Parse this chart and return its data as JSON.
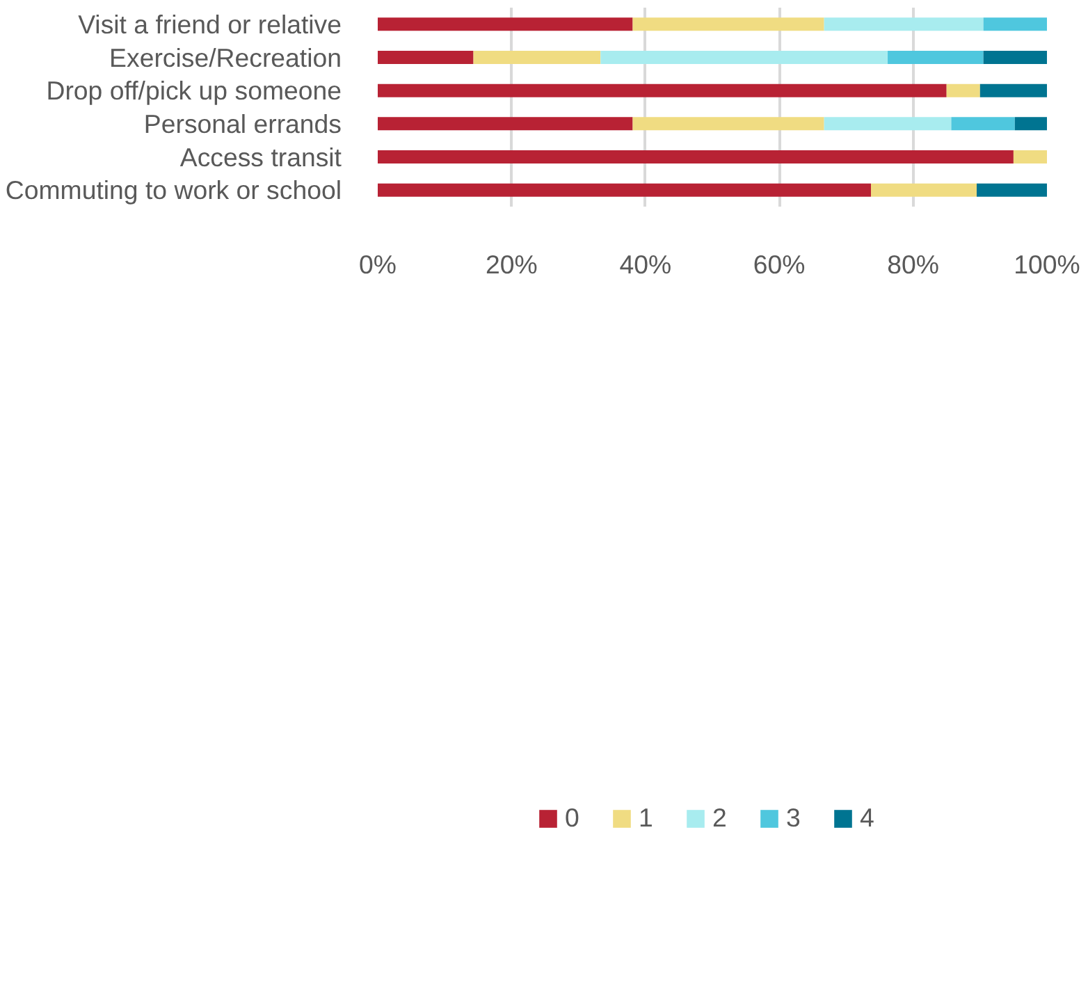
{
  "chart_data": {
    "type": "bar",
    "orientation": "horizontal",
    "stacked": true,
    "categories": [
      "Visit a friend or relative",
      "Exercise/Recreation",
      "Drop off/pick up someone",
      "Personal errands",
      "Access transit",
      "Commuting to work or school"
    ],
    "series": [
      {
        "name": "0",
        "color": "#b82234",
        "values": [
          38.1,
          14.3,
          85.0,
          38.1,
          95.0,
          73.7
        ]
      },
      {
        "name": "1",
        "color": "#f0dc82",
        "values": [
          28.6,
          19.0,
          5.0,
          28.6,
          5.0,
          15.8
        ]
      },
      {
        "name": "2",
        "color": "#a8ecef",
        "values": [
          23.8,
          42.9,
          0,
          19.0,
          0,
          0
        ]
      },
      {
        "name": "3",
        "color": "#4fc7de",
        "values": [
          9.5,
          14.3,
          0,
          9.5,
          0,
          0
        ]
      },
      {
        "name": "4",
        "color": "#007491",
        "values": [
          0,
          9.5,
          10.0,
          4.8,
          0,
          10.5
        ]
      }
    ],
    "xlim": [
      0,
      100
    ],
    "xticks": [
      {
        "value": 0,
        "label": "0%"
      },
      {
        "value": 20,
        "label": "20%"
      },
      {
        "value": 40,
        "label": "40%"
      },
      {
        "value": 60,
        "label": "60%"
      },
      {
        "value": 80,
        "label": "80%"
      },
      {
        "value": 100,
        "label": "100%"
      }
    ],
    "grid": "x",
    "legend": "bottom"
  }
}
